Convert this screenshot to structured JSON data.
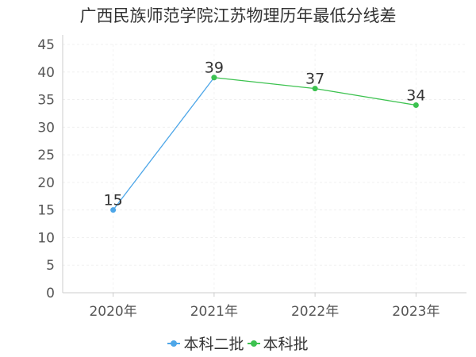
{
  "chart_data": {
    "type": "line",
    "title": "广西民族师范学院江苏物理历年最低分线差",
    "categories": [
      "2020年",
      "2021年",
      "2022年",
      "2023年"
    ],
    "series": [
      {
        "name": "本科二批",
        "color": "#4da6e8",
        "values": [
          15,
          39,
          null,
          null
        ]
      },
      {
        "name": "本科批",
        "color": "#3cc24f",
        "values": [
          null,
          39,
          37,
          34
        ]
      }
    ],
    "data_labels": [
      "15",
      "39",
      "37",
      "34"
    ],
    "ylim": [
      0,
      45
    ],
    "yticks": [
      0,
      5,
      10,
      15,
      20,
      25,
      30,
      35,
      40,
      45
    ],
    "grid": true,
    "legend_position": "bottom"
  }
}
